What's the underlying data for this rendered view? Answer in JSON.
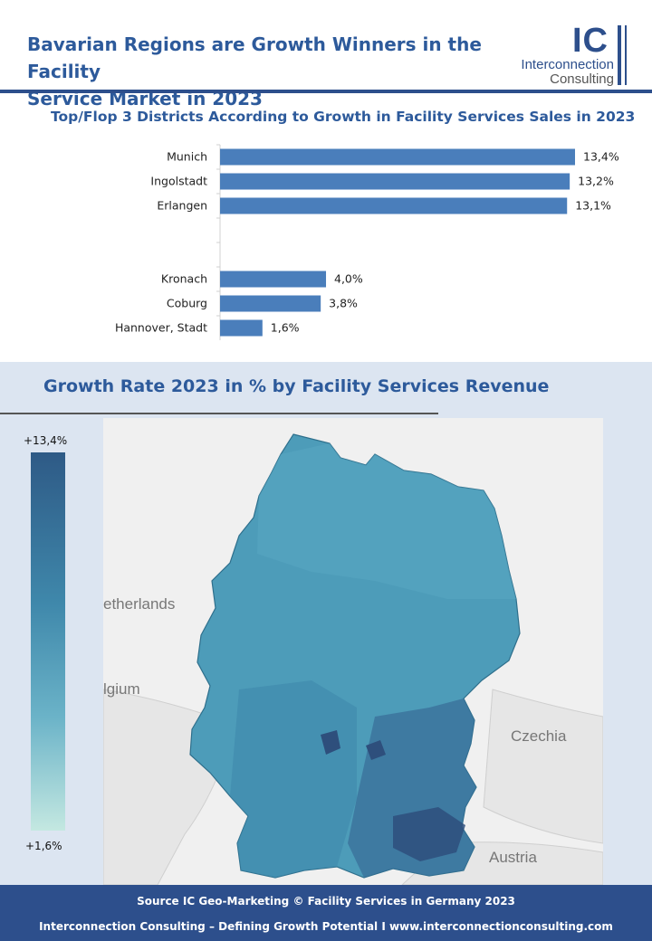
{
  "header": {
    "title_line1": "Bavarian Regions are Growth Winners in the Facility",
    "title_line2": "Service Market in 2023",
    "logo_mark": "IC",
    "logo_line1": "Interconnection",
    "logo_line2": "Consulting"
  },
  "chart_data": {
    "type": "bar",
    "orientation": "horizontal",
    "title": "Top/Flop 3 Districts According to Growth in Facility Services Sales in 2023",
    "categories": [
      "Munich",
      "Ingolstadt",
      "Erlangen",
      "",
      "",
      "Kronach",
      "Coburg",
      "Hannover, Stadt"
    ],
    "values": [
      13.4,
      13.2,
      13.1,
      null,
      null,
      4.0,
      3.8,
      1.6
    ],
    "data_labels": [
      "13,4%",
      "13,2%",
      "13,1%",
      "",
      "",
      "4,0%",
      "3,8%",
      "1,6%"
    ],
    "xlim": [
      0,
      13.4
    ],
    "color": "#4a7ebb"
  },
  "map": {
    "title": "Growth Rate 2023 in % by Facility Services Revenue",
    "legend_max": "+13,4%",
    "legend_min": "+1,6%",
    "labels": {
      "netherlands": "etherlands",
      "belgium": "lgium",
      "czechia": "Czechia",
      "austria": "Austria"
    },
    "colors": {
      "dark": "#2e5a86",
      "mid": "#3f88ab",
      "light": "#c4e8e1"
    }
  },
  "footer": {
    "line1": "Source IC Geo-Marketing © Facility Services in Germany 2023",
    "line2": "Interconnection Consulting – Defining Growth Potential I  www.interconnectionconsulting.com"
  }
}
